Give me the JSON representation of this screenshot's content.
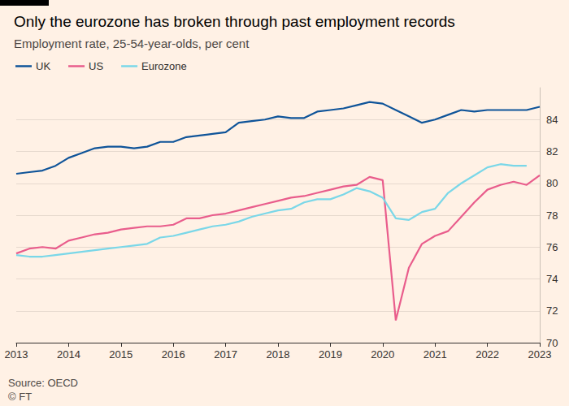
{
  "chart_data": {
    "type": "line",
    "title": "Only the eurozone has broken through past employment records",
    "subtitle": "Employment rate, 25-54-year-olds, per cent",
    "source": "Source: OECD",
    "credit": "© FT",
    "categories": [
      "2013",
      null,
      null,
      null,
      "2014",
      null,
      null,
      null,
      "2015",
      null,
      null,
      null,
      "2016",
      null,
      null,
      null,
      "2017",
      null,
      null,
      null,
      "2018",
      null,
      null,
      null,
      "2019",
      null,
      null,
      null,
      "2020",
      null,
      null,
      null,
      "2021",
      null,
      null,
      null,
      "2022",
      null,
      null,
      null,
      "2023"
    ],
    "series": [
      {
        "name": "UK",
        "color": "#0f5499",
        "values": [
          80.6,
          80.7,
          80.8,
          81.1,
          81.6,
          81.9,
          82.2,
          82.3,
          82.3,
          82.2,
          82.3,
          82.6,
          82.6,
          82.9,
          83.0,
          83.1,
          83.2,
          83.8,
          83.9,
          84.0,
          84.2,
          84.1,
          84.1,
          84.5,
          84.6,
          84.7,
          84.9,
          85.1,
          85.0,
          84.6,
          84.2,
          83.8,
          84.0,
          84.3,
          84.6,
          84.5,
          84.6,
          84.6,
          84.6,
          84.6,
          84.8
        ]
      },
      {
        "name": "US",
        "color": "#e95d8c",
        "values": [
          75.6,
          75.9,
          76.0,
          75.9,
          76.4,
          76.6,
          76.8,
          76.9,
          77.1,
          77.2,
          77.3,
          77.3,
          77.4,
          77.8,
          77.8,
          78.0,
          78.1,
          78.3,
          78.5,
          78.7,
          78.9,
          79.1,
          79.2,
          79.4,
          79.6,
          79.8,
          79.9,
          80.4,
          80.2,
          71.4,
          74.7,
          76.2,
          76.7,
          77.0,
          77.9,
          78.8,
          79.6,
          79.9,
          80.1,
          79.9,
          80.5
        ]
      },
      {
        "name": "Eurozone",
        "color": "#7ad7e8",
        "values": [
          75.5,
          75.4,
          75.4,
          75.5,
          75.6,
          75.7,
          75.8,
          75.9,
          76.0,
          76.1,
          76.2,
          76.6,
          76.7,
          76.9,
          77.1,
          77.3,
          77.4,
          77.6,
          77.9,
          78.1,
          78.3,
          78.4,
          78.8,
          79.0,
          79.0,
          79.3,
          79.7,
          79.5,
          79.1,
          77.8,
          77.7,
          78.2,
          78.4,
          79.4,
          80.0,
          80.5,
          81.0,
          81.2,
          81.1,
          81.1,
          null
        ]
      }
    ],
    "ylim": [
      70,
      86
    ],
    "yticks": [
      70,
      72,
      74,
      76,
      78,
      80,
      82,
      84
    ],
    "grid": true,
    "legend": "top-left"
  }
}
